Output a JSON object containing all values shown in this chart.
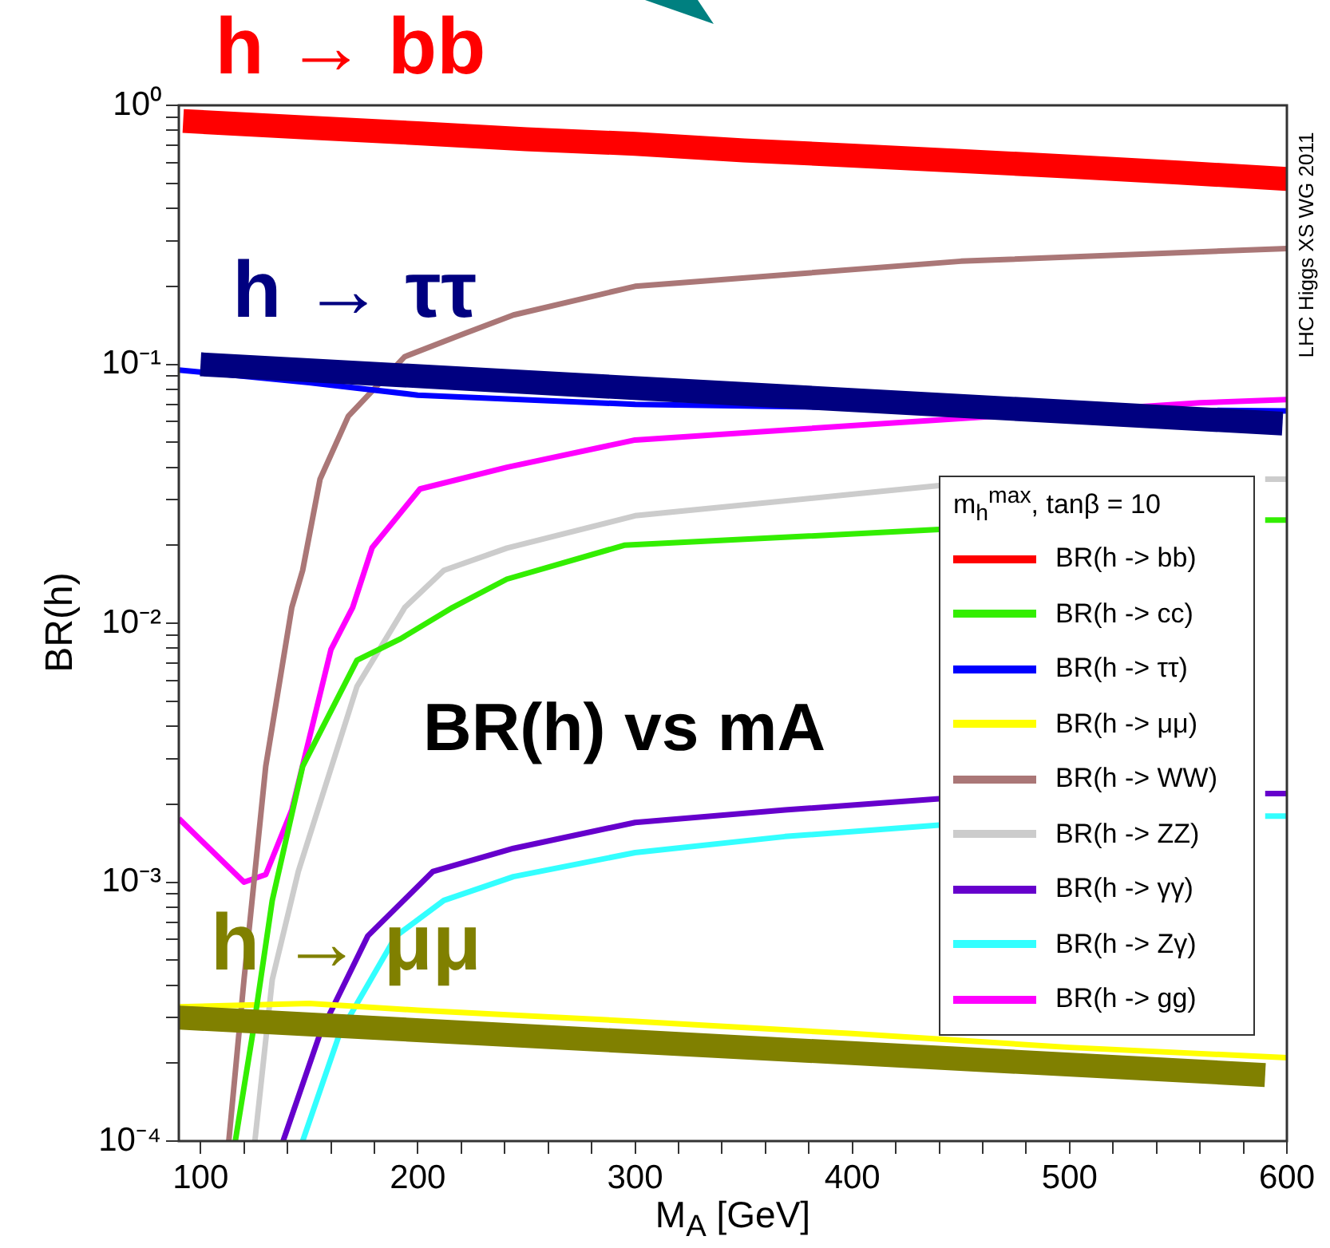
{
  "chart_data": {
    "type": "line",
    "xlabel": "M$_{A}$ [GeV]",
    "ylabel": "BR(h)",
    "legend_title": "m$_{h}$$^{max}$, tanβ = 10",
    "legend": "right",
    "log": "y",
    "grid": false,
    "xlim": [
      90,
      600
    ],
    "ylim": [
      0.0001,
      1
    ],
    "xticks": [
      100,
      {
        "value": 120,
        "label": null
      },
      {
        "value": 140,
        "label": null
      },
      {
        "value": 160,
        "label": null
      },
      {
        "value": 180,
        "label": null
      },
      200,
      {
        "value": 220,
        "label": null
      },
      {
        "value": 240,
        "label": null
      },
      {
        "value": 260,
        "label": null
      },
      {
        "value": 280,
        "label": null
      },
      300,
      {
        "value": 320,
        "label": null
      },
      {
        "value": 340,
        "label": null
      },
      {
        "value": 360,
        "label": null
      },
      {
        "value": 380,
        "label": null
      },
      400,
      {
        "value": 420,
        "label": null
      },
      {
        "value": 440,
        "label": null
      },
      {
        "value": 460,
        "label": null
      },
      {
        "value": 480,
        "label": null
      },
      500,
      {
        "value": 520,
        "label": null
      },
      {
        "value": 540,
        "label": null
      },
      {
        "value": 560,
        "label": null
      },
      {
        "value": 580,
        "label": null
      },
      600
    ],
    "yticks": [
      {
        "value": 0.0001,
        "label": "10⁻⁴"
      },
      {
        "value": 0.0002,
        "label": null
      },
      {
        "value": 0.0003,
        "label": null
      },
      {
        "value": 0.0004,
        "label": null
      },
      {
        "value": 0.0005,
        "label": null
      },
      {
        "value": 0.0006,
        "label": null
      },
      {
        "value": 0.0007,
        "label": null
      },
      {
        "value": 0.0008,
        "label": null
      },
      {
        "value": 0.0009,
        "label": null
      },
      {
        "value": 0.001,
        "label": "10⁻³"
      },
      {
        "value": 0.002,
        "label": null
      },
      {
        "value": 0.003,
        "label": null
      },
      {
        "value": 0.004,
        "label": null
      },
      {
        "value": 0.005,
        "label": null
      },
      {
        "value": 0.006,
        "label": null
      },
      {
        "value": 0.007,
        "label": null
      },
      {
        "value": 0.008,
        "label": null
      },
      {
        "value": 0.009,
        "label": null
      },
      {
        "value": 0.01,
        "label": "10⁻²"
      },
      {
        "value": 0.02,
        "label": null
      },
      {
        "value": 0.03,
        "label": null
      },
      {
        "value": 0.04,
        "label": null
      },
      {
        "value": 0.05,
        "label": null
      },
      {
        "value": 0.06,
        "label": null
      },
      {
        "value": 0.07,
        "label": null
      },
      {
        "value": 0.08,
        "label": null
      },
      {
        "value": 0.09,
        "label": null
      },
      {
        "value": 0.1,
        "label": "10⁻¹"
      },
      {
        "value": 0.2,
        "label": null
      },
      {
        "value": 0.3,
        "label": null
      },
      {
        "value": 0.4,
        "label": null
      },
      {
        "value": 0.5,
        "label": null
      },
      {
        "value": 0.6,
        "label": null
      },
      {
        "value": 0.7,
        "label": null
      },
      {
        "value": 0.8,
        "label": null
      },
      {
        "value": 0.9,
        "label": null
      },
      {
        "value": 1,
        "label": "10⁰"
      }
    ],
    "annotations": [
      "BR(h) vs mA",
      "LHC Higgs XS WG 2011",
      {
        "text": "h → bb",
        "x": 92,
        "y": 0.87
      }
    ],
    "series": [
      {
        "name": "BR(h -> bb)",
        "color": "#ff0000",
        "x": [
          92,
          150,
          200,
          250,
          300,
          350,
          400,
          450,
          500,
          550,
          600
        ],
        "values": [
          0.87,
          0.82,
          0.78,
          0.74,
          0.71,
          0.67,
          0.64,
          0.61,
          0.58,
          0.55,
          0.52
        ]
      },
      {
        "name": "BR(h -> cc)",
        "color": "#33ee00",
        "x": [
          116,
          124,
          133,
          147,
          172,
          192,
          216,
          241,
          295,
          440,
          500,
          590,
          600
        ],
        "values": [
          0.0001,
          0.00026,
          0.00085,
          0.0028,
          0.0072,
          0.0087,
          0.0115,
          0.0148,
          0.02,
          0.023,
          null,
          0.025,
          0.025
        ]
      },
      {
        "name": "BR(h -> ττ)",
        "color": "#0000ff",
        "x": [
          90,
          150,
          200,
          300,
          400,
          500,
          600
        ],
        "values": [
          0.095,
          0.085,
          0.076,
          0.07,
          0.068,
          0.067,
          0.066
        ]
      },
      {
        "name": "BR(h -> μμ)",
        "color": "#ffff00",
        "x": [
          90,
          150,
          200,
          300,
          400,
          500,
          600
        ],
        "values": [
          0.00033,
          0.00034,
          0.00032,
          0.00029,
          0.00026,
          0.00023,
          0.00021
        ]
      },
      {
        "name": "BR(h -> WW)",
        "color": "#aa7777",
        "x": [
          113,
          120,
          130,
          142,
          147,
          155,
          168,
          194,
          220,
          244,
          300,
          450,
          600
        ],
        "values": [
          0.0001,
          0.00042,
          0.0028,
          0.0115,
          0.016,
          0.036,
          0.063,
          0.107,
          0.13,
          0.155,
          0.2,
          0.25,
          0.28
        ]
      },
      {
        "name": "BR(h -> ZZ)",
        "color": "#cccccc",
        "x": [
          125,
          133,
          145,
          172,
          194,
          212,
          241,
          300,
          440,
          500,
          590,
          600
        ],
        "values": [
          0.0001,
          0.00042,
          0.0011,
          0.0057,
          0.0115,
          0.016,
          0.0195,
          0.026,
          0.034,
          null,
          0.036,
          0.036
        ]
      },
      {
        "name": "BR(h -> γγ)",
        "color": "#6600cc",
        "x": [
          138,
          155,
          177,
          207,
          244,
          300,
          369,
          440,
          500,
          590,
          600
        ],
        "values": [
          0.0001,
          0.00026,
          0.00062,
          0.0011,
          0.00135,
          0.0017,
          0.0019,
          0.0021,
          null,
          0.0022,
          0.0022
        ]
      },
      {
        "name": "BR(h -> Zγ)",
        "color": "#33ffff",
        "x": [
          147,
          164,
          190,
          212,
          244,
          300,
          369,
          440,
          500,
          590,
          600
        ],
        "values": [
          0.0001,
          0.00026,
          0.00062,
          0.00085,
          0.00105,
          0.0013,
          0.0015,
          0.00166,
          null,
          0.0018,
          0.0018
        ]
      },
      {
        "name": "BR(h -> gg)",
        "color": "#ff00ff",
        "x": [
          90,
          120,
          130,
          142,
          160,
          170,
          179,
          201,
          241,
          300,
          560,
          600
        ],
        "values": [
          0.00176,
          0.001,
          0.00107,
          0.0019,
          0.0079,
          0.0115,
          0.0196,
          0.033,
          0.04,
          0.051,
          0.071,
          0.073
        ]
      },
      {
        "name": "h → ττ",
        "color": "#000080",
        "x": [
          100,
          598
        ],
        "values": [
          0.1,
          0.059
        ]
      },
      {
        "name": "h → μμ",
        "color": "#808000",
        "x": [
          90,
          590
        ],
        "values": [
          0.0003,
          0.00018
        ]
      }
    ]
  }
}
